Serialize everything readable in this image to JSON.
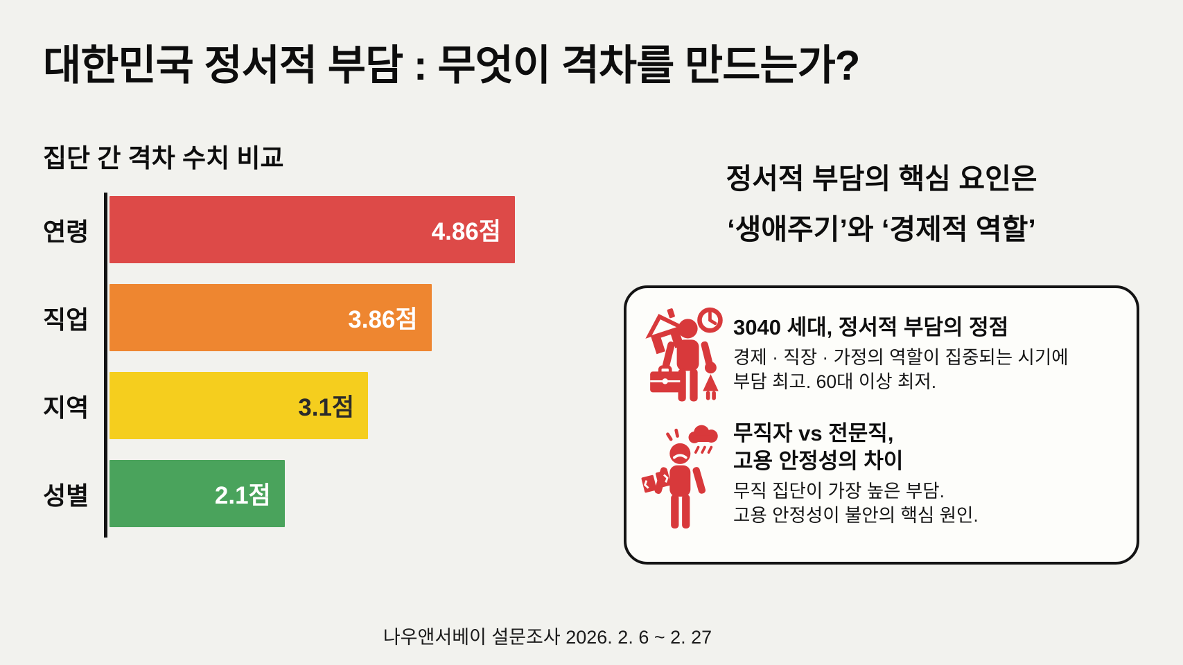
{
  "page": {
    "title": "대한민국 정서적 부담 : 무엇이 격차를 만드는가?",
    "footer_source": "나우앤서베이 설문조사 2026. 2. 6 ~ 2. 27"
  },
  "theme": {
    "background": "#f2f2ee",
    "text": "#121212",
    "axis": "#141414",
    "icon_red": "#d8393b",
    "box_background": "#fdfdfa",
    "box_border": "#141414"
  },
  "chart_data": {
    "type": "bar",
    "orientation": "horizontal",
    "title": "집단 간 격차 수치 비교",
    "categories": [
      "연령",
      "직업",
      "지역",
      "성별"
    ],
    "values": [
      4.86,
      3.86,
      3.1,
      2.1
    ],
    "value_labels": [
      "4.86점",
      "3.86점",
      "3.1점",
      "2.1점"
    ],
    "bar_colors": [
      "#dd4a48",
      "#ee8630",
      "#f5ce1e",
      "#4aa35c"
    ],
    "value_label_colors": [
      "#ffffff",
      "#ffffff",
      "#2b2b2b",
      "#ffffff"
    ],
    "xlabel": "",
    "ylabel": "",
    "xlim": [
      0,
      5.5
    ],
    "grid": false,
    "legend": false,
    "unit": "점"
  },
  "insight": {
    "heading_line1": "정서적 부담의 핵심 요인은",
    "heading_line2": "‘생애주기’와 ‘경제적 역할’",
    "cards": [
      {
        "icon": "worker-family-time-icon",
        "title_line1": "3040 세대, 정서적 부담의 정점",
        "title_line2": "",
        "body_line1": "경제 · 직장 · 가정의 역할이 집중되는 시기에",
        "body_line2": "부담 최고. 60대 이상 최저."
      },
      {
        "icon": "stressed-unemployed-icon",
        "title_line1": "무직자 vs 전문직,",
        "title_line2": "고용 안정성의 차이",
        "body_line1": "무직 집단이 가장 높은 부담.",
        "body_line2": "고용 안정성이 불안의 핵심 원인."
      }
    ]
  }
}
